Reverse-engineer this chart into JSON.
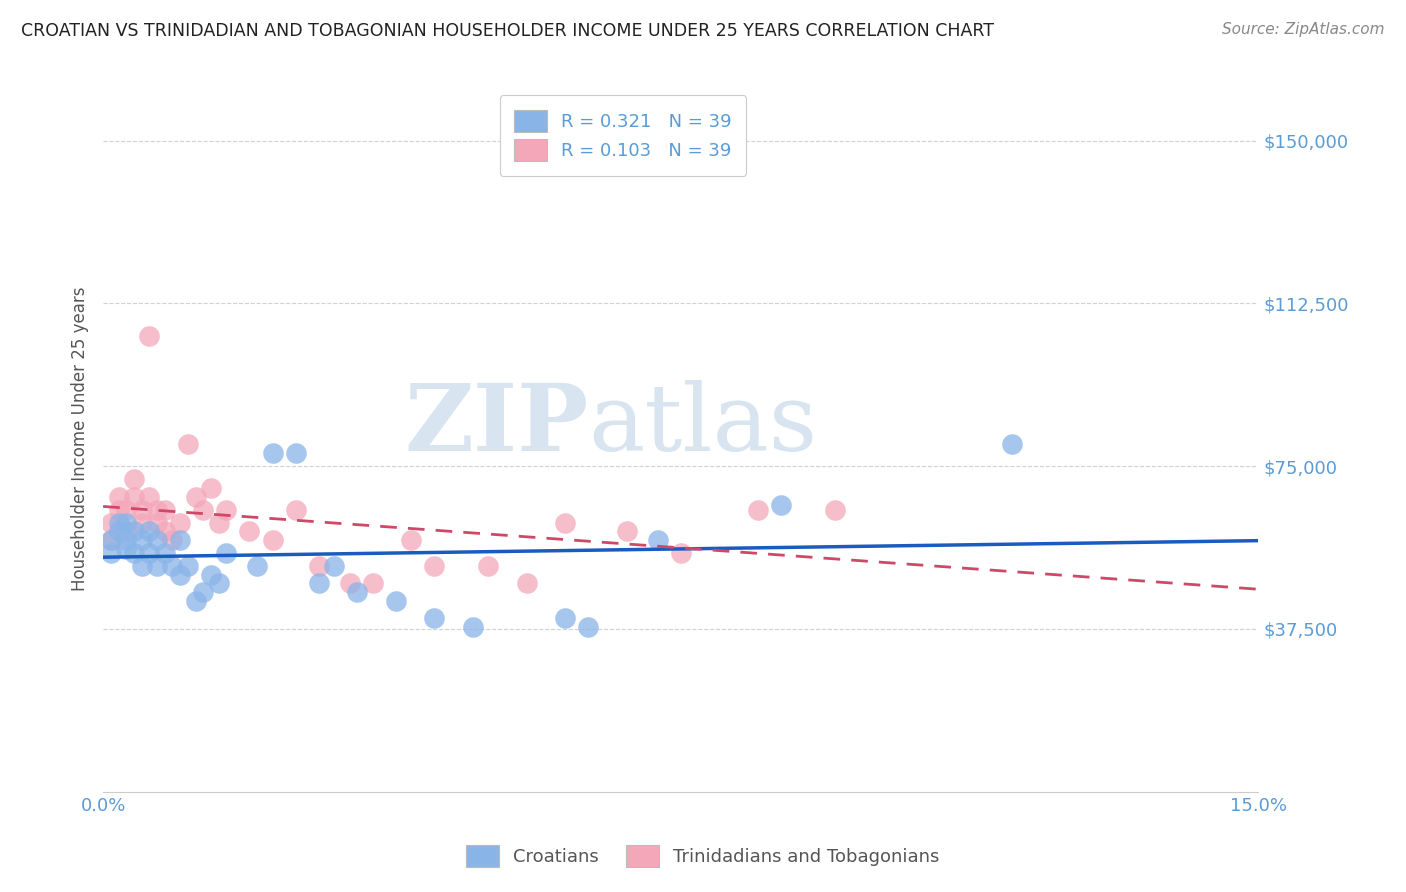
{
  "title": "CROATIAN VS TRINIDADIAN AND TOBAGONIAN HOUSEHOLDER INCOME UNDER 25 YEARS CORRELATION CHART",
  "source": "Source: ZipAtlas.com",
  "ylabel": "Householder Income Under 25 years",
  "xlim": [
    0.0,
    0.15
  ],
  "ylim": [
    0,
    162500
  ],
  "yticks": [
    37500,
    75000,
    112500,
    150000
  ],
  "ytick_labels": [
    "$37,500",
    "$75,000",
    "$112,500",
    "$150,000"
  ],
  "r_croatian": 0.321,
  "n_croatian": 39,
  "r_trinidadian": 0.103,
  "n_trinidadian": 39,
  "color_croatian": "#89b4e8",
  "color_trinidadian": "#f4a7b9",
  "line_color_croatian": "#1a5bbf",
  "line_color_trinidadian": "#d04868",
  "legend_label_croatian": "Croatians",
  "legend_label_trinidadian": "Trinidadians and Tobagonians",
  "watermark_zip": "ZIP",
  "watermark_atlas": "atlas",
  "title_color": "#222222",
  "axis_label_color": "#555555",
  "tick_color": "#5b9bd5",
  "grid_color": "#cccccc",
  "croatian_x": [
    0.001,
    0.001,
    0.002,
    0.002,
    0.003,
    0.003,
    0.003,
    0.004,
    0.004,
    0.005,
    0.005,
    0.006,
    0.006,
    0.007,
    0.007,
    0.008,
    0.009,
    0.01,
    0.01,
    0.011,
    0.012,
    0.013,
    0.014,
    0.015,
    0.016,
    0.02,
    0.022,
    0.025,
    0.028,
    0.03,
    0.033,
    0.038,
    0.043,
    0.048,
    0.06,
    0.063,
    0.072,
    0.088,
    0.118
  ],
  "croatian_y": [
    58000,
    55000,
    62000,
    60000,
    56000,
    62000,
    58000,
    55000,
    60000,
    52000,
    58000,
    60000,
    55000,
    58000,
    52000,
    55000,
    52000,
    58000,
    50000,
    52000,
    44000,
    46000,
    50000,
    48000,
    55000,
    52000,
    78000,
    78000,
    48000,
    52000,
    46000,
    44000,
    40000,
    38000,
    40000,
    38000,
    58000,
    66000,
    80000
  ],
  "trinidadian_x": [
    0.001,
    0.001,
    0.002,
    0.002,
    0.003,
    0.003,
    0.004,
    0.004,
    0.005,
    0.005,
    0.006,
    0.006,
    0.007,
    0.007,
    0.008,
    0.008,
    0.009,
    0.01,
    0.011,
    0.012,
    0.013,
    0.014,
    0.015,
    0.016,
    0.019,
    0.022,
    0.025,
    0.028,
    0.032,
    0.035,
    0.04,
    0.043,
    0.05,
    0.055,
    0.06,
    0.068,
    0.075,
    0.085,
    0.095
  ],
  "trinidadian_y": [
    58000,
    62000,
    65000,
    68000,
    60000,
    65000,
    68000,
    72000,
    62000,
    65000,
    105000,
    68000,
    62000,
    65000,
    60000,
    65000,
    58000,
    62000,
    80000,
    68000,
    65000,
    70000,
    62000,
    65000,
    60000,
    58000,
    65000,
    52000,
    48000,
    48000,
    58000,
    52000,
    52000,
    48000,
    62000,
    60000,
    55000,
    65000,
    65000
  ]
}
